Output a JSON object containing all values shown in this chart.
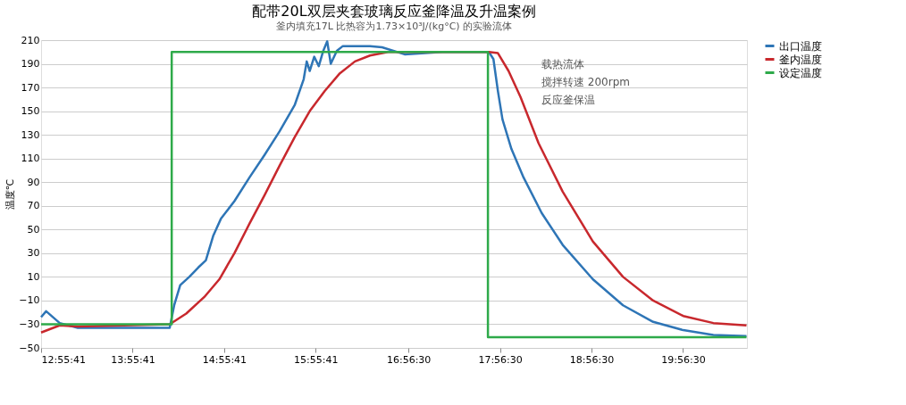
{
  "chart_data": {
    "type": "line",
    "title": "配带20L双层夹套玻璃反应釜降温及升温案例",
    "subtitle": "釜内填充17L 比热容为1.73×10³J/(kg°C) 的实验流体",
    "ylabel": "温度℃",
    "annotations": [
      "载热流体",
      "搅拌转速 200rpm",
      "反应釜保温"
    ],
    "xlim": [
      12.928,
      20.64
    ],
    "xticks": [
      {
        "value": 12.92806,
        "label": "12:55:41"
      },
      {
        "value": 13.92806,
        "label": "13:55:41"
      },
      {
        "value": 14.92806,
        "label": "14:55:41"
      },
      {
        "value": 15.92806,
        "label": "15:55:41"
      },
      {
        "value": 16.94167,
        "label": "16:56:30"
      },
      {
        "value": 17.94167,
        "label": "17:56:30"
      },
      {
        "value": 18.94167,
        "label": "18:56:30"
      },
      {
        "value": 19.94167,
        "label": "19:56:30"
      }
    ],
    "ylim": [
      -50,
      210
    ],
    "yticks": [
      -50,
      -30,
      -10,
      10,
      30,
      50,
      70,
      90,
      110,
      130,
      150,
      170,
      190,
      210
    ],
    "grid": "y",
    "legend": "right",
    "series": [
      {
        "name": "出口温度",
        "color": "#2e75b6",
        "x": [
          12.928,
          12.983,
          13.131,
          13.329,
          14.333,
          14.382,
          14.448,
          14.547,
          14.646,
          14.728,
          14.81,
          14.892,
          15.04,
          15.205,
          15.369,
          15.534,
          15.698,
          15.797,
          15.83,
          15.863,
          15.912,
          15.962,
          16.011,
          16.054,
          16.093,
          16.159,
          16.225,
          16.521,
          16.653,
          16.9,
          17.311,
          17.82,
          17.87,
          17.919,
          17.969,
          18.067,
          18.199,
          18.397,
          18.627,
          18.956,
          19.286,
          19.615,
          19.944,
          20.273,
          20.635
        ],
        "values": [
          -24,
          -19,
          -29,
          -33,
          -33,
          -14,
          3,
          10,
          18,
          24,
          45,
          59,
          74,
          94,
          113,
          133,
          155,
          177,
          192,
          184,
          196,
          188,
          201,
          209,
          190,
          201,
          205,
          205,
          204,
          198,
          200,
          200,
          194,
          167,
          143,
          118,
          94,
          64,
          37,
          8,
          -14,
          -28,
          -35,
          -39,
          -40
        ]
      },
      {
        "name": "釜内温度",
        "color": "#c8282d",
        "x": [
          12.928,
          13.131,
          13.329,
          14.333,
          14.514,
          14.711,
          14.876,
          15.04,
          15.205,
          15.369,
          15.534,
          15.698,
          15.863,
          16.027,
          16.192,
          16.357,
          16.521,
          16.719,
          17.82,
          17.919,
          18.035,
          18.166,
          18.363,
          18.627,
          18.956,
          19.286,
          19.615,
          19.944,
          20.273,
          20.635
        ],
        "values": [
          -37,
          -31,
          -32,
          -30,
          -21,
          -7,
          8,
          30,
          55,
          79,
          104,
          128,
          150,
          167,
          182,
          192,
          197,
          200,
          200,
          199,
          184,
          162,
          123,
          82,
          40,
          10,
          -10,
          -23,
          -29,
          -31
        ]
      },
      {
        "name": "设定温度",
        "color": "#2eaa4a",
        "x": [
          12.928,
          14.355,
          14.355,
          17.81,
          17.81,
          20.635
        ],
        "values": [
          -30,
          -30,
          200,
          200,
          -41,
          -41
        ]
      }
    ]
  }
}
